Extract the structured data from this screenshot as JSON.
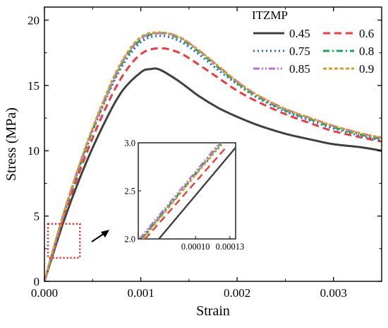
{
  "chart_data": {
    "type": "line",
    "xlabel": "Strain",
    "ylabel": "Stress (MPa)",
    "xlim": [
      0,
      0.0035
    ],
    "ylim": [
      0,
      21
    ],
    "xticks": [
      0,
      0.001,
      0.002,
      0.003
    ],
    "xtick_labels": [
      "0.000",
      "0.001",
      "0.002",
      "0.003"
    ],
    "yticks": [
      0,
      5,
      10,
      15,
      20
    ],
    "ytick_labels": [
      "0",
      "5",
      "10",
      "15",
      "20"
    ],
    "grid": false,
    "legend": {
      "title": "ITZMP",
      "placement": "top-right",
      "columns": 2
    },
    "series": [
      {
        "name": "0.45",
        "color": "#404040",
        "dash": "solid",
        "x": [
          0,
          0.0002,
          0.0004,
          0.0006,
          0.0008,
          0.001,
          0.0011,
          0.0012,
          0.0014,
          0.0016,
          0.0018,
          0.002,
          0.0022,
          0.0025,
          0.0028,
          0.003,
          0.0033,
          0.0035
        ],
        "y": [
          0,
          4.6,
          8.5,
          11.8,
          14.5,
          16.0,
          16.25,
          16.2,
          15.3,
          14.2,
          13.3,
          12.6,
          12.0,
          11.3,
          10.8,
          10.5,
          10.25,
          10.0
        ]
      },
      {
        "name": "0.6",
        "color": "#ef3b3b",
        "dash": "dashed",
        "x": [
          0,
          0.0002,
          0.0004,
          0.0006,
          0.0008,
          0.001,
          0.0012,
          0.0014,
          0.0016,
          0.0018,
          0.002,
          0.0022,
          0.0025,
          0.0028,
          0.003,
          0.0033,
          0.0035
        ],
        "y": [
          0,
          4.9,
          9.1,
          12.7,
          15.6,
          17.4,
          17.85,
          17.5,
          16.6,
          15.6,
          14.6,
          13.8,
          12.8,
          12.0,
          11.5,
          11.0,
          10.7
        ]
      },
      {
        "name": "0.75",
        "color": "#1f63d6",
        "dash": "dotted",
        "x": [
          0,
          0.0002,
          0.0004,
          0.0006,
          0.0008,
          0.001,
          0.0012,
          0.0014,
          0.0016,
          0.0018,
          0.002,
          0.0022,
          0.0025,
          0.0028,
          0.003,
          0.0033,
          0.0035
        ],
        "y": [
          0,
          5.1,
          9.5,
          13.3,
          16.4,
          18.3,
          18.8,
          18.4,
          17.4,
          16.2,
          15.1,
          14.1,
          13.0,
          12.2,
          11.7,
          11.1,
          10.8
        ]
      },
      {
        "name": "0.8",
        "color": "#1aa35a",
        "dash": "dashdot",
        "x": [
          0,
          0.0002,
          0.0004,
          0.0006,
          0.0008,
          0.001,
          0.0012,
          0.0014,
          0.0016,
          0.0018,
          0.002,
          0.0022,
          0.0025,
          0.0028,
          0.003,
          0.0033,
          0.0035
        ],
        "y": [
          0,
          5.15,
          9.6,
          13.4,
          16.6,
          18.5,
          19.0,
          18.6,
          17.6,
          16.4,
          15.2,
          14.2,
          13.1,
          12.3,
          11.8,
          11.2,
          10.9
        ]
      },
      {
        "name": "0.85",
        "color": "#b56fe0",
        "dash": "dashdotdot",
        "x": [
          0,
          0.0002,
          0.0004,
          0.0006,
          0.0008,
          0.001,
          0.0012,
          0.0014,
          0.0016,
          0.0018,
          0.002,
          0.0022,
          0.0025,
          0.0028,
          0.003,
          0.0033,
          0.0035
        ],
        "y": [
          0,
          5.2,
          9.7,
          13.5,
          16.7,
          18.6,
          19.0,
          18.7,
          17.7,
          16.5,
          15.3,
          14.3,
          13.2,
          12.4,
          11.9,
          11.3,
          11.0
        ]
      },
      {
        "name": "0.9",
        "color": "#d99a1e",
        "dash": "shortdash",
        "x": [
          0,
          0.0002,
          0.0004,
          0.0006,
          0.0008,
          0.001,
          0.0012,
          0.0014,
          0.0016,
          0.0018,
          0.002,
          0.0022,
          0.0025,
          0.0028,
          0.003,
          0.0033,
          0.0035
        ],
        "y": [
          0,
          5.2,
          9.7,
          13.6,
          16.8,
          18.7,
          19.05,
          18.7,
          17.7,
          16.5,
          15.3,
          14.3,
          13.2,
          12.4,
          11.9,
          11.3,
          11.0
        ]
      }
    ],
    "zoom_box": {
      "xlim": [
        0,
        0.00039
      ],
      "ylim": [
        1.8,
        4.4
      ],
      "color": "#e02020"
    },
    "inset": {
      "xlim": [
        5e-05,
        0.000135
      ],
      "ylim": [
        2.0,
        3.0
      ],
      "xticks": [
        0.0001,
        0.00013
      ],
      "xtick_labels": [
        "0.00010",
        "0.00013"
      ],
      "yticks": [
        2.0,
        2.5,
        3.0
      ],
      "ytick_labels": [
        "2.0",
        "2.5",
        "3.0"
      ],
      "series": [
        {
          "name": "0.45",
          "x": [
            6.8e-05,
            0.000135
          ],
          "y": [
            2.0,
            2.95
          ]
        },
        {
          "name": "0.6",
          "x": [
            5.6e-05,
            0.000128
          ],
          "y": [
            2.0,
            2.97
          ]
        },
        {
          "name": "0.75",
          "x": [
            5.2e-05,
            0.000124
          ],
          "y": [
            2.0,
            3.0
          ]
        },
        {
          "name": "0.8",
          "x": [
            5.3e-05,
            0.000122
          ],
          "y": [
            2.0,
            3.0
          ]
        },
        {
          "name": "0.85",
          "x": [
            5.1e-05,
            0.000121
          ],
          "y": [
            2.0,
            3.0
          ]
        },
        {
          "name": "0.9",
          "x": [
            5.4e-05,
            0.000123
          ],
          "y": [
            2.0,
            3.0
          ]
        }
      ]
    }
  }
}
